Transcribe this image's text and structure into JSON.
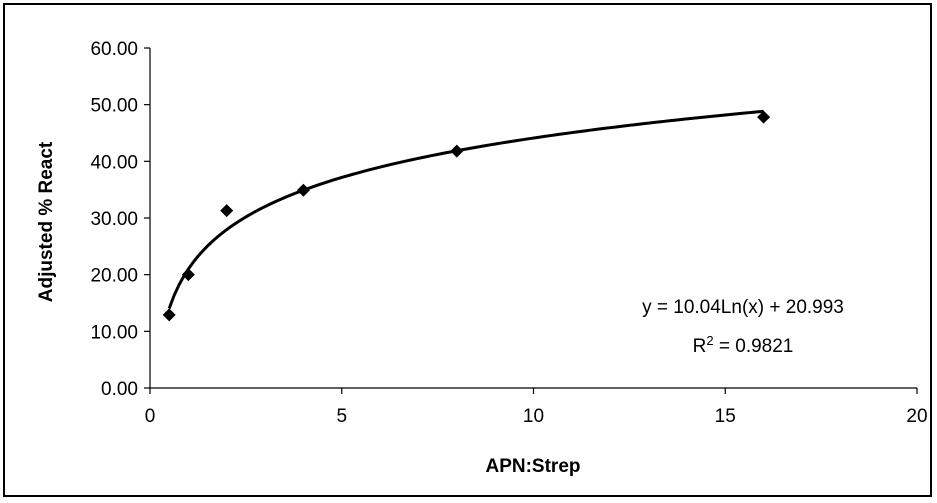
{
  "chart_data": {
    "type": "scatter",
    "xlabel": "APN:Strep",
    "ylabel": "Adjusted % React",
    "xlim": [
      0,
      20
    ],
    "ylim": [
      0,
      60
    ],
    "x_ticks": [
      0,
      5,
      10,
      15,
      20
    ],
    "y_ticks": [
      "0.00",
      "10.00",
      "20.00",
      "30.00",
      "40.00",
      "50.00",
      "60.00"
    ],
    "grid": false,
    "legend": "none",
    "series": [
      {
        "x": [
          0.5,
          1,
          2,
          4,
          8,
          16
        ],
        "y": [
          12.9,
          20.0,
          31.3,
          34.9,
          41.8,
          47.8
        ],
        "marker": "diamond",
        "color": "#000000"
      }
    ],
    "trendline": {
      "type": "logarithmic",
      "a": 10.04,
      "b": 20.993,
      "x_range": [
        0.5,
        16
      ],
      "color": "#000000"
    },
    "annotations": {
      "equation": "y = 10.04Ln(x) + 20.993",
      "r2_prefix": "R",
      "r2_sup": "2",
      "r2_value": " = 0.9821"
    }
  }
}
